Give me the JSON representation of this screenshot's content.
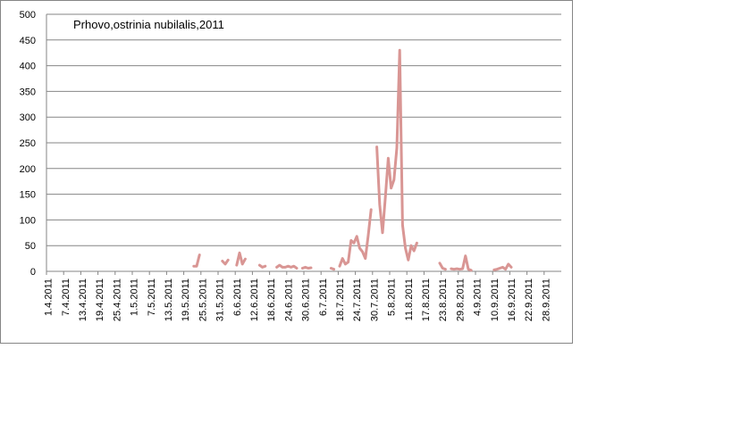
{
  "chart_data": {
    "type": "line",
    "title": "Prhovo,ostrinia nubilalis,2011",
    "categories": [
      "1.4.2011",
      null,
      null,
      null,
      null,
      null,
      "7.4.2011",
      null,
      null,
      null,
      null,
      null,
      "13.4.2011",
      null,
      null,
      null,
      null,
      null,
      "19.4.2011",
      null,
      null,
      null,
      null,
      null,
      "25.4.2011",
      null,
      null,
      null,
      null,
      null,
      "1.5.2011",
      null,
      null,
      null,
      null,
      null,
      "7.5.2011",
      null,
      null,
      null,
      null,
      null,
      "13.5.2011",
      null,
      null,
      null,
      null,
      null,
      "19.5.2011",
      null,
      null,
      null,
      null,
      null,
      "25.5.2011",
      null,
      null,
      null,
      null,
      null,
      "31.5.2011",
      null,
      null,
      null,
      null,
      null,
      "6.6.2011",
      null,
      null,
      null,
      null,
      null,
      "12.6.2011",
      null,
      null,
      null,
      null,
      null,
      "18.6.2011",
      null,
      null,
      null,
      null,
      null,
      "24.6.2011",
      null,
      null,
      null,
      null,
      null,
      "30.6.2011",
      null,
      null,
      null,
      null,
      null,
      "6.7.2011",
      null,
      null,
      null,
      null,
      null,
      "18.7.2011",
      null,
      null,
      null,
      null,
      null,
      "24.7.2011",
      null,
      null,
      null,
      null,
      null,
      "30.7.2011",
      null,
      null,
      null,
      null,
      null,
      "5.8.2011",
      null,
      null,
      null,
      null,
      null,
      "11.8.2011",
      null,
      null,
      null,
      null,
      null,
      "17.8.2011",
      null,
      null,
      null,
      null,
      null,
      "23.8.2011",
      null,
      null,
      null,
      null,
      null,
      "29.8.2011",
      null,
      null,
      null,
      null,
      null,
      "4.9.2011",
      null,
      null,
      null,
      null,
      null,
      "10.9.2011",
      null,
      null,
      null,
      null,
      null,
      "16.9.2011",
      null,
      null,
      null,
      null,
      null,
      "22.9.2011",
      null,
      null,
      null,
      null,
      null,
      "28.9.2011",
      null,
      null,
      null,
      null,
      null
    ],
    "values": [
      null,
      null,
      null,
      null,
      null,
      null,
      null,
      null,
      null,
      null,
      null,
      null,
      null,
      null,
      null,
      null,
      null,
      null,
      null,
      null,
      null,
      null,
      null,
      null,
      null,
      null,
      null,
      null,
      null,
      null,
      null,
      null,
      null,
      null,
      null,
      null,
      null,
      null,
      null,
      null,
      null,
      null,
      null,
      null,
      null,
      null,
      null,
      null,
      null,
      null,
      null,
      10,
      10,
      32,
      null,
      null,
      null,
      null,
      null,
      null,
      null,
      20,
      14,
      22,
      null,
      null,
      12,
      36,
      14,
      24,
      null,
      null,
      null,
      null,
      12,
      8,
      10,
      null,
      null,
      null,
      8,
      12,
      8,
      8,
      10,
      8,
      10,
      6,
      null,
      6,
      8,
      6,
      7,
      null,
      null,
      null,
      null,
      null,
      null,
      6,
      4,
      null,
      10,
      25,
      14,
      18,
      60,
      55,
      68,
      45,
      38,
      25,
      70,
      120,
      null,
      242,
      130,
      75,
      145,
      220,
      162,
      178,
      240,
      430,
      90,
      45,
      22,
      50,
      40,
      55,
      null,
      null,
      null,
      null,
      null,
      null,
      null,
      16,
      6,
      4,
      null,
      5,
      4,
      5,
      4,
      5,
      30,
      4,
      2,
      null,
      null,
      null,
      null,
      null,
      null,
      null,
      3,
      4,
      6,
      8,
      4,
      14,
      8,
      null,
      null,
      null,
      null,
      null,
      null,
      null,
      null,
      null,
      null,
      null,
      null,
      null,
      null,
      null,
      null,
      null
    ],
    "color": "#d99694",
    "ylim": [
      0,
      500
    ],
    "yticks": [
      0,
      50,
      100,
      150,
      200,
      250,
      300,
      350,
      400,
      450,
      500
    ],
    "grid": true
  }
}
